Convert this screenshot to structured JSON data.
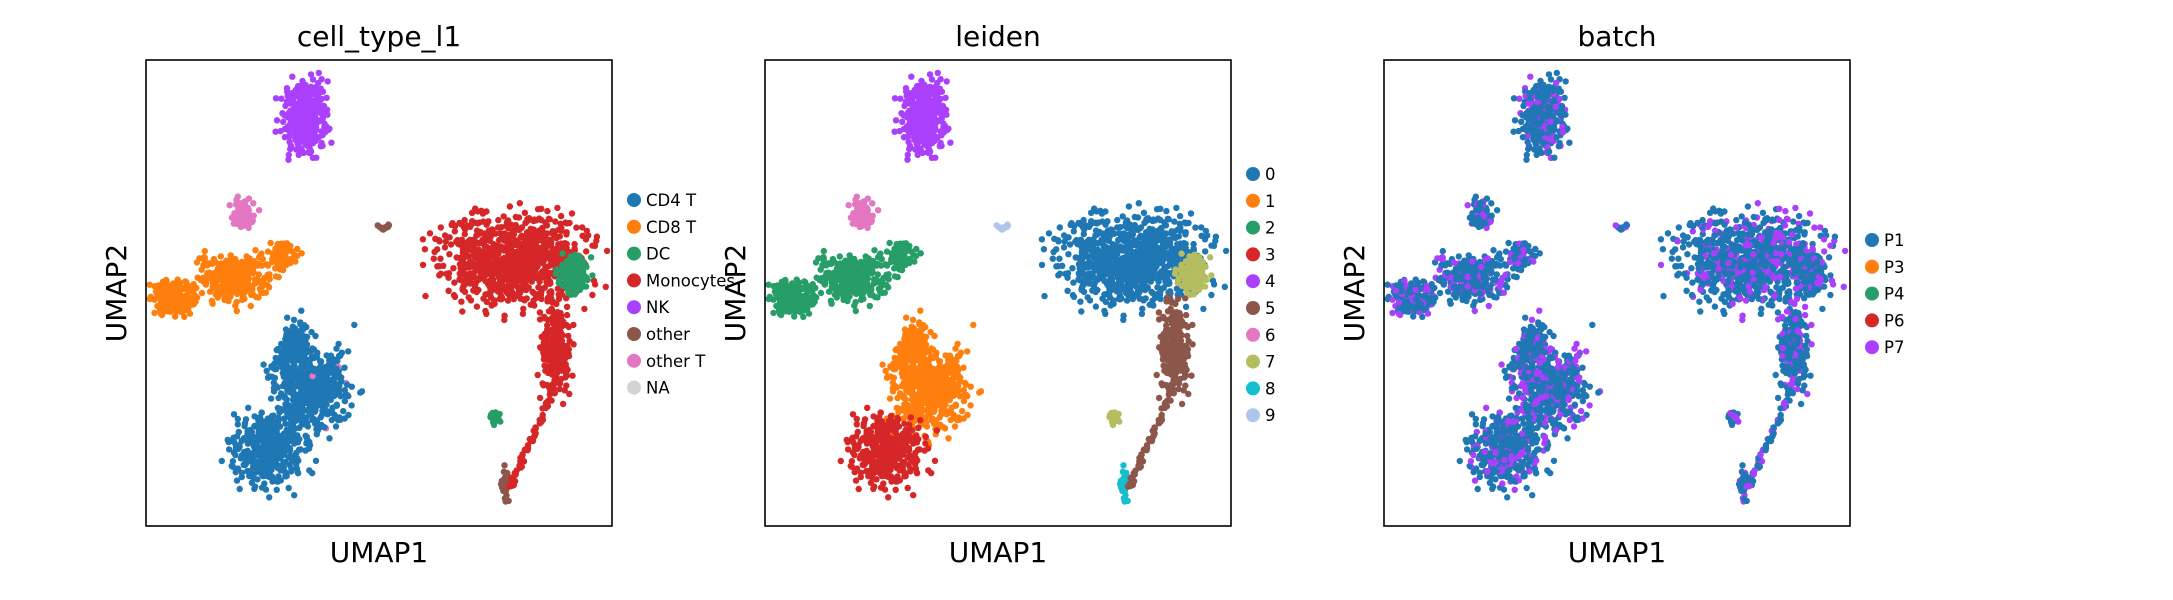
{
  "figure_type": "UMAP embedding scatter plots",
  "chart_data": [
    {
      "type": "scatter",
      "title": "cell_type_l1",
      "xlabel": "UMAP1",
      "ylabel": "UMAP2",
      "grid": false,
      "ticks": false,
      "legend_placement": "right-outside",
      "legend": [
        {
          "name": "CD4 T",
          "color": "#1f77b4"
        },
        {
          "name": "CD8 T",
          "color": "#ff7f0e"
        },
        {
          "name": "DC",
          "color": "#279e68"
        },
        {
          "name": "Monocytes",
          "color": "#d62728"
        },
        {
          "name": "NK",
          "color": "#aa40fc"
        },
        {
          "name": "other",
          "color": "#8c564b"
        },
        {
          "name": "other T",
          "color": "#e377c2"
        },
        {
          "name": "NA",
          "color": "#d3d3d3"
        }
      ]
    },
    {
      "type": "scatter",
      "title": "leiden",
      "xlabel": "UMAP1",
      "ylabel": "UMAP2",
      "grid": false,
      "ticks": false,
      "legend_placement": "right-outside",
      "legend": [
        {
          "name": "0",
          "color": "#1f77b4"
        },
        {
          "name": "1",
          "color": "#ff7f0e"
        },
        {
          "name": "2",
          "color": "#279e68"
        },
        {
          "name": "3",
          "color": "#d62728"
        },
        {
          "name": "4",
          "color": "#aa40fc"
        },
        {
          "name": "5",
          "color": "#8c564b"
        },
        {
          "name": "6",
          "color": "#e377c2"
        },
        {
          "name": "7",
          "color": "#b5bd61"
        },
        {
          "name": "8",
          "color": "#17becf"
        },
        {
          "name": "9",
          "color": "#aec7e8"
        }
      ]
    },
    {
      "type": "scatter",
      "title": "batch",
      "xlabel": "UMAP1",
      "ylabel": "UMAP2",
      "grid": false,
      "ticks": false,
      "legend_placement": "right-outside",
      "legend": [
        {
          "name": "P1",
          "color": "#1f77b4"
        },
        {
          "name": "P3",
          "color": "#ff7f0e"
        },
        {
          "name": "P4",
          "color": "#279e68"
        },
        {
          "name": "P6",
          "color": "#d62728"
        },
        {
          "name": "P7",
          "color": "#aa40fc"
        }
      ]
    }
  ]
}
